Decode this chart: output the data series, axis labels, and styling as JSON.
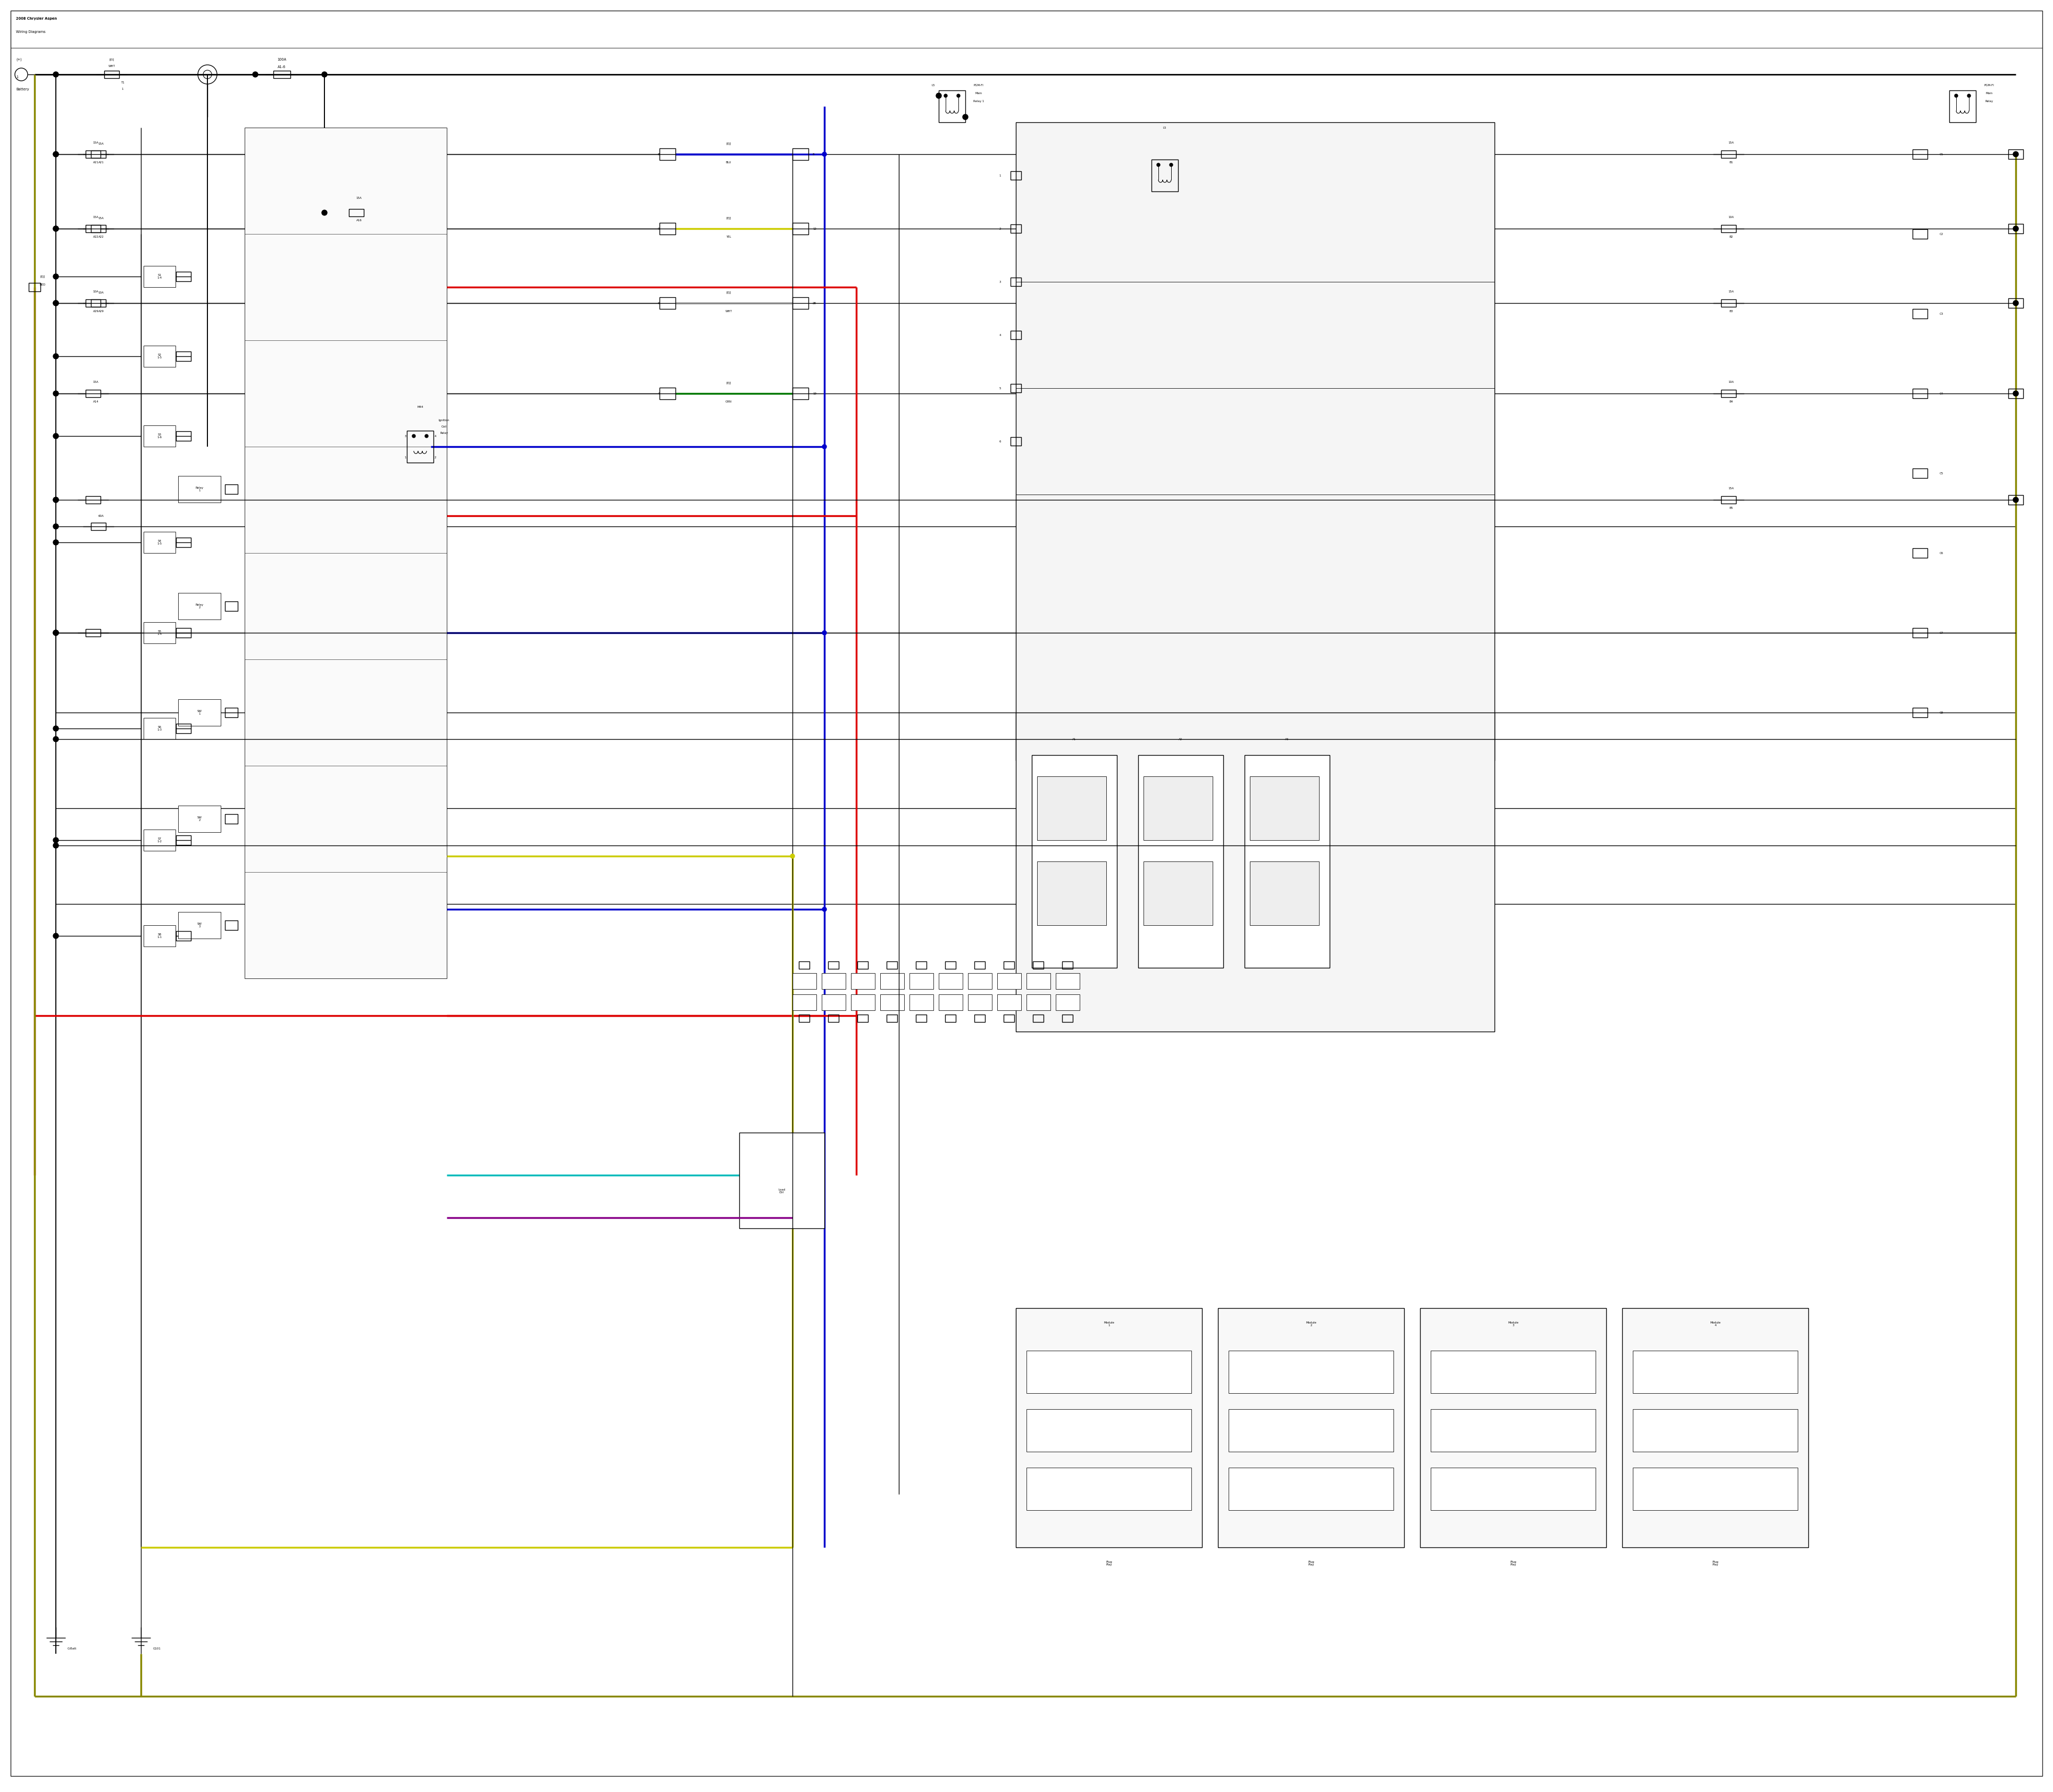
{
  "bg_color": "#ffffff",
  "fig_width": 38.4,
  "fig_height": 33.5,
  "colors": {
    "black": "#000000",
    "red": "#dd0000",
    "blue": "#0000cc",
    "yellow": "#cccc00",
    "green": "#007700",
    "cyan": "#00bbbb",
    "purple": "#880088",
    "dark_olive": "#888800",
    "gray": "#888888",
    "dark_gray": "#444444"
  },
  "lw": {
    "thin": 0.6,
    "wire": 1.0,
    "med": 1.4,
    "thick": 1.8,
    "color_wire": 2.5,
    "bus": 2.0
  },
  "fs": {
    "tiny": 4.0,
    "small": 4.8,
    "med": 5.5,
    "large": 6.5
  }
}
